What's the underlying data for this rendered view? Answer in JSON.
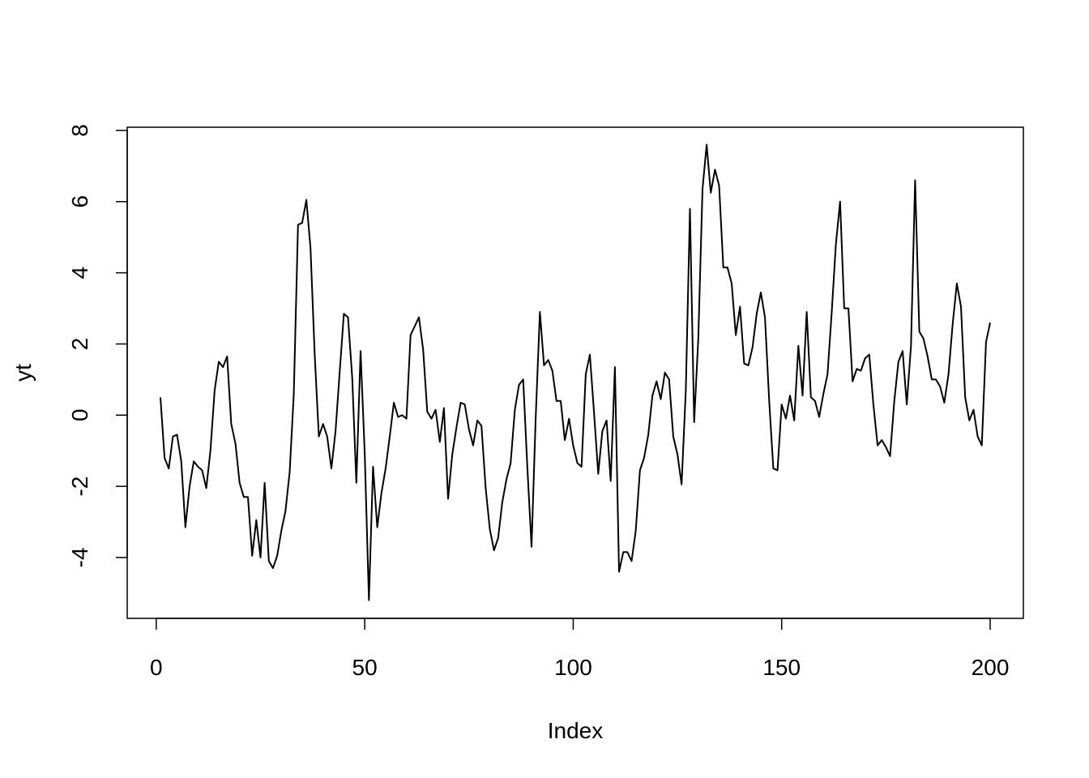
{
  "chart_data": {
    "type": "line",
    "xlabel": "Index",
    "ylabel": "yt",
    "xlim": [
      -6.96,
      207.96
    ],
    "ylim": [
      -5.71,
      8.09
    ],
    "x_ticks": [
      0,
      50,
      100,
      150,
      200
    ],
    "y_ticks": [
      -4,
      -2,
      0,
      2,
      4,
      6,
      8
    ],
    "x_tick_labels": [
      "0",
      "50",
      "100",
      "150",
      "200"
    ],
    "y_tick_labels": [
      "-4",
      "-2",
      "0",
      "2",
      "4",
      "6",
      "8"
    ],
    "grid": false,
    "box": true,
    "line_color": "#000000",
    "series": [
      {
        "x": [
          1,
          2,
          3,
          4,
          5,
          6,
          7,
          8,
          9,
          10,
          11,
          12,
          13,
          14,
          15,
          16,
          17,
          18,
          19,
          20,
          21,
          22,
          23,
          24,
          25,
          26,
          27,
          28,
          29,
          30,
          31,
          32,
          33,
          34,
          35,
          36,
          37,
          38,
          39,
          40,
          41,
          42,
          43,
          44,
          45,
          46,
          47,
          48,
          49,
          50,
          51,
          52,
          53,
          54,
          55,
          56,
          57,
          58,
          59,
          60,
          61,
          62,
          63,
          64,
          65,
          66,
          67,
          68,
          69,
          70,
          71,
          72,
          73,
          74,
          75,
          76,
          77,
          78,
          79,
          80,
          81,
          82,
          83,
          84,
          85,
          86,
          87,
          88,
          89,
          90,
          91,
          92,
          93,
          94,
          95,
          96,
          97,
          98,
          99,
          100,
          101,
          102,
          103,
          104,
          105,
          106,
          107,
          108,
          109,
          110,
          111,
          112,
          113,
          114,
          115,
          116,
          117,
          118,
          119,
          120,
          121,
          122,
          123,
          124,
          125,
          126,
          127,
          128,
          129,
          130,
          131,
          132,
          133,
          134,
          135,
          136,
          137,
          138,
          139,
          140,
          141,
          142,
          143,
          144,
          145,
          146,
          147,
          148,
          149,
          150,
          151,
          152,
          153,
          154,
          155,
          156,
          157,
          158,
          159,
          160,
          161,
          162,
          163,
          164,
          165,
          166,
          167,
          168,
          169,
          170,
          171,
          172,
          173,
          174,
          175,
          176,
          177,
          178,
          179,
          180,
          181,
          182,
          183,
          184,
          185,
          186,
          187,
          188,
          189,
          190,
          191,
          192,
          193,
          194,
          195,
          196,
          197,
          198,
          199,
          200
        ],
        "values": [
          0.5,
          -1.2,
          -1.5,
          -0.6,
          -0.55,
          -1.3,
          -3.15,
          -2.0,
          -1.3,
          -1.45,
          -1.55,
          -2.05,
          -1.0,
          0.7,
          1.5,
          1.35,
          1.65,
          -0.25,
          -0.8,
          -1.9,
          -2.3,
          -2.3,
          -3.95,
          -2.95,
          -4.0,
          -1.9,
          -4.1,
          -4.3,
          -3.95,
          -3.25,
          -2.7,
          -1.6,
          0.6,
          5.35,
          5.4,
          6.05,
          4.7,
          1.7,
          -0.6,
          -0.25,
          -0.6,
          -1.5,
          -0.45,
          1.2,
          2.85,
          2.75,
          1.05,
          -1.9,
          1.8,
          -1.05,
          -5.2,
          -1.45,
          -3.15,
          -2.2,
          -1.5,
          -0.6,
          0.35,
          -0.05,
          0.0,
          -0.1,
          2.25,
          2.5,
          2.75,
          1.85,
          0.1,
          -0.1,
          0.15,
          -0.75,
          0.2,
          -2.35,
          -1.1,
          -0.35,
          0.35,
          0.3,
          -0.4,
          -0.85,
          -0.15,
          -0.3,
          -2.05,
          -3.2,
          -3.8,
          -3.45,
          -2.45,
          -1.8,
          -1.35,
          0.15,
          0.85,
          1.0,
          -1.45,
          -3.7,
          -0.1,
          2.9,
          1.4,
          1.55,
          1.25,
          0.4,
          0.4,
          -0.7,
          -0.1,
          -0.85,
          -1.35,
          -1.45,
          1.15,
          1.7,
          0.05,
          -1.65,
          -0.45,
          -0.15,
          -1.85,
          1.35,
          -4.4,
          -3.85,
          -3.85,
          -4.1,
          -3.25,
          -1.55,
          -1.2,
          -0.55,
          0.55,
          0.95,
          0.45,
          1.2,
          1.0,
          -0.6,
          -1.1,
          -1.95,
          0.7,
          5.8,
          -0.2,
          2.15,
          6.35,
          7.6,
          6.25,
          6.9,
          6.45,
          4.15,
          4.15,
          3.7,
          2.25,
          3.05,
          1.45,
          1.4,
          1.9,
          2.85,
          3.45,
          2.75,
          0.4,
          -1.5,
          -1.55,
          0.3,
          -0.1,
          0.55,
          -0.15,
          1.95,
          0.55,
          2.9,
          0.5,
          0.4,
          -0.05,
          0.6,
          1.15,
          2.9,
          4.8,
          6.0,
          3.0,
          3.0,
          0.95,
          1.3,
          1.25,
          1.6,
          1.7,
          0.3,
          -0.85,
          -0.7,
          -0.9,
          -1.15,
          0.4,
          1.5,
          1.8,
          0.3,
          1.95,
          6.6,
          2.35,
          2.15,
          1.65,
          1.0,
          1.0,
          0.8,
          0.35,
          1.15,
          2.55,
          3.7,
          3.05,
          0.5,
          -0.15,
          0.15,
          -0.6,
          -0.85,
          2.05,
          2.6
        ]
      }
    ]
  }
}
